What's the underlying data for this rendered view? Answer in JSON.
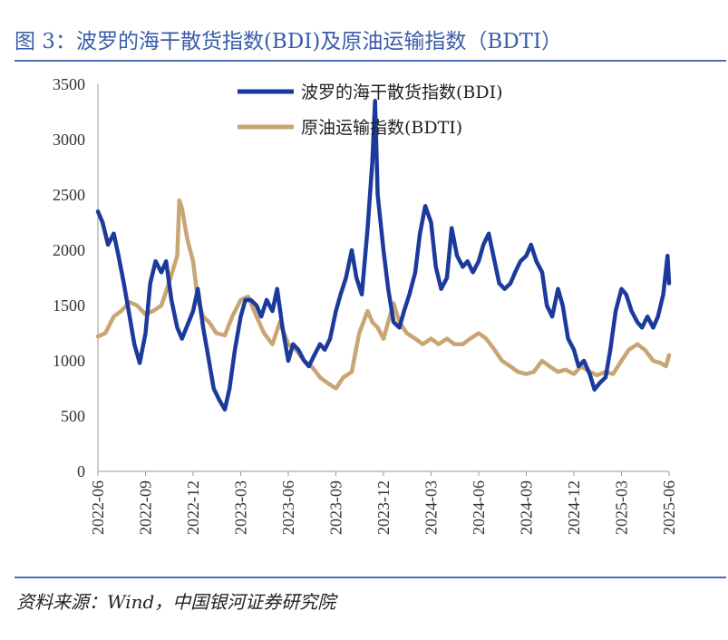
{
  "figure_title": "图 3：波罗的海干散货指数(BDI)及原油运输指数（BDTI）",
  "source_note": "资料来源：Wind，中国银河证券研究院",
  "colors": {
    "bdi": "#1c3a9c",
    "bdti": "#c9a574",
    "title": "#3a5da8",
    "rule": "#4a6fb0"
  },
  "chart_data": {
    "type": "line",
    "title": "",
    "xlabel": "",
    "ylabel": "",
    "ylim": [
      0,
      3500
    ],
    "yticks": [
      0,
      500,
      1000,
      1500,
      2000,
      2500,
      3000,
      3500
    ],
    "xtick_labels": [
      "2022-06",
      "2022-09",
      "2022-12",
      "2023-03",
      "2023-06",
      "2023-09",
      "2023-12",
      "2024-03",
      "2024-06",
      "2024-09",
      "2024-12",
      "2025-03",
      "2025-06"
    ],
    "xrange_months": [
      "2022-06",
      "2025-06"
    ],
    "legend_position": "top-center",
    "grid": false,
    "series": [
      {
        "name": "波罗的海干散货指数(BDI)",
        "color": "#1c3a9c",
        "points": [
          [
            "2022-06-01",
            2350
          ],
          [
            "2022-06-10",
            2250
          ],
          [
            "2022-06-20",
            2050
          ],
          [
            "2022-07-01",
            2150
          ],
          [
            "2022-07-10",
            1950
          ],
          [
            "2022-07-20",
            1700
          ],
          [
            "2022-08-01",
            1400
          ],
          [
            "2022-08-10",
            1150
          ],
          [
            "2022-08-20",
            980
          ],
          [
            "2022-09-01",
            1250
          ],
          [
            "2022-09-10",
            1700
          ],
          [
            "2022-09-20",
            1900
          ],
          [
            "2022-10-01",
            1800
          ],
          [
            "2022-10-10",
            1900
          ],
          [
            "2022-10-20",
            1550
          ],
          [
            "2022-11-01",
            1300
          ],
          [
            "2022-11-10",
            1200
          ],
          [
            "2022-11-20",
            1320
          ],
          [
            "2022-12-01",
            1450
          ],
          [
            "2022-12-10",
            1650
          ],
          [
            "2022-12-20",
            1300
          ],
          [
            "2023-01-01",
            1000
          ],
          [
            "2023-01-10",
            750
          ],
          [
            "2023-01-20",
            650
          ],
          [
            "2023-02-01",
            560
          ],
          [
            "2023-02-10",
            750
          ],
          [
            "2023-02-20",
            1100
          ],
          [
            "2023-03-01",
            1400
          ],
          [
            "2023-03-10",
            1550
          ],
          [
            "2023-03-20",
            1550
          ],
          [
            "2023-04-01",
            1500
          ],
          [
            "2023-04-10",
            1400
          ],
          [
            "2023-04-20",
            1550
          ],
          [
            "2023-05-01",
            1450
          ],
          [
            "2023-05-10",
            1650
          ],
          [
            "2023-05-20",
            1300
          ],
          [
            "2023-06-01",
            1000
          ],
          [
            "2023-06-10",
            1150
          ],
          [
            "2023-06-20",
            1100
          ],
          [
            "2023-07-01",
            1000
          ],
          [
            "2023-07-10",
            950
          ],
          [
            "2023-07-20",
            1050
          ],
          [
            "2023-08-01",
            1150
          ],
          [
            "2023-08-10",
            1100
          ],
          [
            "2023-08-20",
            1200
          ],
          [
            "2023-09-01",
            1450
          ],
          [
            "2023-09-10",
            1600
          ],
          [
            "2023-09-20",
            1750
          ],
          [
            "2023-10-01",
            2000
          ],
          [
            "2023-10-10",
            1750
          ],
          [
            "2023-10-20",
            1600
          ],
          [
            "2023-11-01",
            2200
          ],
          [
            "2023-11-10",
            2800
          ],
          [
            "2023-11-15",
            3350
          ],
          [
            "2023-11-20",
            2500
          ],
          [
            "2023-12-01",
            2000
          ],
          [
            "2023-12-10",
            1650
          ],
          [
            "2023-12-20",
            1350
          ],
          [
            "2024-01-01",
            1300
          ],
          [
            "2024-01-10",
            1450
          ],
          [
            "2024-01-20",
            1600
          ],
          [
            "2024-02-01",
            1800
          ],
          [
            "2024-02-10",
            2150
          ],
          [
            "2024-02-20",
            2400
          ],
          [
            "2024-03-01",
            2250
          ],
          [
            "2024-03-10",
            1850
          ],
          [
            "2024-03-20",
            1650
          ],
          [
            "2024-04-01",
            1750
          ],
          [
            "2024-04-10",
            2200
          ],
          [
            "2024-04-20",
            1950
          ],
          [
            "2024-05-01",
            1850
          ],
          [
            "2024-05-10",
            1900
          ],
          [
            "2024-05-20",
            1800
          ],
          [
            "2024-06-01",
            1900
          ],
          [
            "2024-06-10",
            2050
          ],
          [
            "2024-06-20",
            2150
          ],
          [
            "2024-07-01",
            1900
          ],
          [
            "2024-07-10",
            1700
          ],
          [
            "2024-07-20",
            1650
          ],
          [
            "2024-08-01",
            1700
          ],
          [
            "2024-08-10",
            1800
          ],
          [
            "2024-08-20",
            1900
          ],
          [
            "2024-09-01",
            1950
          ],
          [
            "2024-09-10",
            2050
          ],
          [
            "2024-09-20",
            1900
          ],
          [
            "2024-10-01",
            1800
          ],
          [
            "2024-10-10",
            1500
          ],
          [
            "2024-10-20",
            1400
          ],
          [
            "2024-11-01",
            1650
          ],
          [
            "2024-11-10",
            1500
          ],
          [
            "2024-11-20",
            1200
          ],
          [
            "2024-12-01",
            1100
          ],
          [
            "2024-12-10",
            950
          ],
          [
            "2024-12-20",
            1000
          ],
          [
            "2025-01-01",
            880
          ],
          [
            "2025-01-10",
            740
          ],
          [
            "2025-01-20",
            800
          ],
          [
            "2025-02-01",
            850
          ],
          [
            "2025-02-10",
            1100
          ],
          [
            "2025-02-20",
            1450
          ],
          [
            "2025-03-01",
            1650
          ],
          [
            "2025-03-10",
            1600
          ],
          [
            "2025-03-20",
            1450
          ],
          [
            "2025-04-01",
            1350
          ],
          [
            "2025-04-10",
            1300
          ],
          [
            "2025-04-20",
            1400
          ],
          [
            "2025-05-01",
            1300
          ],
          [
            "2025-05-10",
            1400
          ],
          [
            "2025-05-20",
            1600
          ],
          [
            "2025-05-28",
            1950
          ],
          [
            "2025-06-01",
            1700
          ]
        ]
      },
      {
        "name": "原油运输指数(BDTI)",
        "color": "#c9a574",
        "points": [
          [
            "2022-06-01",
            1220
          ],
          [
            "2022-06-15",
            1250
          ],
          [
            "2022-07-01",
            1400
          ],
          [
            "2022-07-15",
            1450
          ],
          [
            "2022-08-01",
            1530
          ],
          [
            "2022-08-15",
            1500
          ],
          [
            "2022-09-01",
            1420
          ],
          [
            "2022-09-15",
            1450
          ],
          [
            "2022-10-01",
            1500
          ],
          [
            "2022-10-15",
            1700
          ],
          [
            "2022-11-01",
            1950
          ],
          [
            "2022-11-05",
            2450
          ],
          [
            "2022-11-10",
            2380
          ],
          [
            "2022-11-20",
            2100
          ],
          [
            "2022-12-01",
            1900
          ],
          [
            "2022-12-10",
            1550
          ],
          [
            "2022-12-20",
            1400
          ],
          [
            "2023-01-01",
            1350
          ],
          [
            "2023-01-15",
            1250
          ],
          [
            "2023-02-01",
            1230
          ],
          [
            "2023-02-15",
            1400
          ],
          [
            "2023-03-01",
            1550
          ],
          [
            "2023-03-15",
            1580
          ],
          [
            "2023-04-01",
            1400
          ],
          [
            "2023-04-15",
            1250
          ],
          [
            "2023-05-01",
            1150
          ],
          [
            "2023-05-15",
            1350
          ],
          [
            "2023-06-01",
            1150
          ],
          [
            "2023-06-15",
            1100
          ],
          [
            "2023-07-01",
            1000
          ],
          [
            "2023-07-15",
            950
          ],
          [
            "2023-08-01",
            850
          ],
          [
            "2023-08-15",
            800
          ],
          [
            "2023-09-01",
            750
          ],
          [
            "2023-09-15",
            850
          ],
          [
            "2023-10-01",
            900
          ],
          [
            "2023-10-15",
            1250
          ],
          [
            "2023-11-01",
            1450
          ],
          [
            "2023-11-10",
            1350
          ],
          [
            "2023-11-20",
            1300
          ],
          [
            "2023-12-01",
            1200
          ],
          [
            "2023-12-10",
            1350
          ],
          [
            "2023-12-20",
            1520
          ],
          [
            "2024-01-01",
            1350
          ],
          [
            "2024-01-15",
            1250
          ],
          [
            "2024-02-01",
            1200
          ],
          [
            "2024-02-15",
            1150
          ],
          [
            "2024-03-01",
            1200
          ],
          [
            "2024-03-15",
            1150
          ],
          [
            "2024-04-01",
            1200
          ],
          [
            "2024-04-15",
            1150
          ],
          [
            "2024-05-01",
            1150
          ],
          [
            "2024-05-15",
            1200
          ],
          [
            "2024-06-01",
            1250
          ],
          [
            "2024-06-15",
            1200
          ],
          [
            "2024-07-01",
            1100
          ],
          [
            "2024-07-15",
            1000
          ],
          [
            "2024-08-01",
            950
          ],
          [
            "2024-08-15",
            900
          ],
          [
            "2024-09-01",
            880
          ],
          [
            "2024-09-15",
            900
          ],
          [
            "2024-10-01",
            1000
          ],
          [
            "2024-10-15",
            950
          ],
          [
            "2024-11-01",
            900
          ],
          [
            "2024-11-15",
            920
          ],
          [
            "2024-12-01",
            880
          ],
          [
            "2024-12-15",
            950
          ],
          [
            "2025-01-01",
            900
          ],
          [
            "2025-01-15",
            870
          ],
          [
            "2025-02-01",
            900
          ],
          [
            "2025-02-15",
            880
          ],
          [
            "2025-03-01",
            1000
          ],
          [
            "2025-03-15",
            1100
          ],
          [
            "2025-04-01",
            1150
          ],
          [
            "2025-04-15",
            1100
          ],
          [
            "2025-05-01",
            1000
          ],
          [
            "2025-05-15",
            980
          ],
          [
            "2025-05-25",
            950
          ],
          [
            "2025-06-01",
            1050
          ]
        ]
      }
    ]
  }
}
